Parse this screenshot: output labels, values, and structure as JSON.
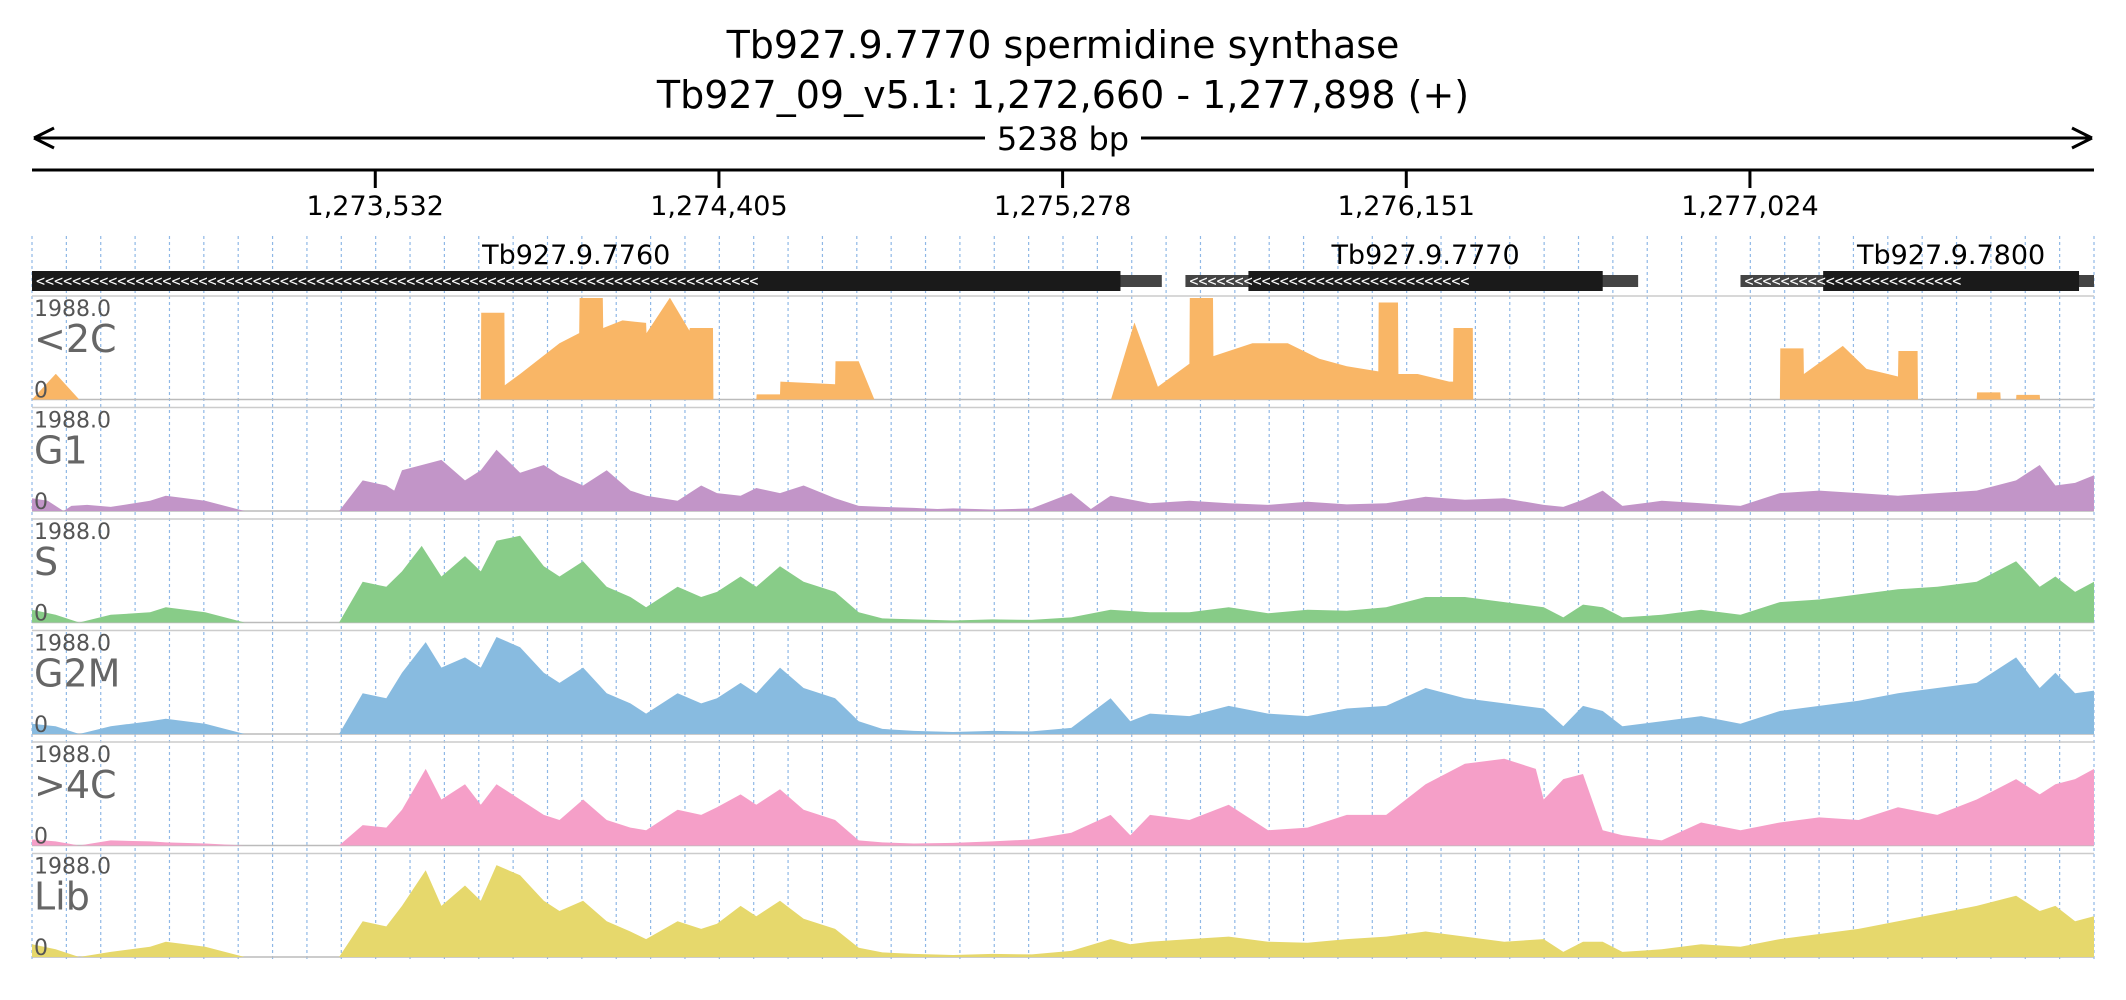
{
  "header": {
    "title_line1": "Tb927.9.7770  spermidine synthase",
    "title_line2": "Tb927_09_v5.1: 1,272,660 - 1,277,898 (+)",
    "span_label": "5238 bp"
  },
  "chart_data": {
    "type": "area",
    "x_range": [
      1272660,
      1277898
    ],
    "x_ticks": [
      1273532,
      1274405,
      1275278,
      1276151,
      1277024
    ],
    "x_tick_labels": [
      "1,273,532",
      "1,274,405",
      "1,275,278",
      "1,276,151",
      "1,277,024"
    ],
    "genes": [
      {
        "name": "Tb927.9.7760",
        "strand": "-",
        "utr_start": 1272660,
        "cds_start": 1272660,
        "cds_end": 1275425,
        "utr_end": 1275530
      },
      {
        "name": "Tb927.9.7770",
        "strand": "-",
        "utr_start": 1275590,
        "cds_start": 1275750,
        "cds_end": 1276650,
        "utr_end": 1276740
      },
      {
        "name": "Tb927.9.7800",
        "strand": "-",
        "utr_start": 1277000,
        "cds_start": 1277210,
        "cds_end": 1277860,
        "utr_end": 1277898
      }
    ],
    "tracks": [
      {
        "name": "<2C",
        "max_label": "1988.0",
        "min_label": "0",
        "ylim": [
          0,
          1988
        ],
        "color": "#f9b666",
        "x": [
          1272660,
          1272720,
          1272721,
          1272780,
          1272781,
          1273000,
          1273800,
          1273801,
          1273860,
          1273861,
          1273900,
          1274000,
          1274050,
          1274051,
          1274110,
          1274111,
          1274160,
          1274220,
          1274221,
          1274280,
          1274281,
          1274330,
          1274331,
          1274390,
          1274391,
          1274500,
          1274501,
          1274560,
          1274561,
          1274700,
          1274701,
          1274760,
          1274800,
          1274850,
          1274860,
          1274861,
          1274910,
          1274911,
          1275000,
          1275400,
          1275401,
          1275460,
          1275461,
          1275520,
          1275600,
          1275601,
          1275660,
          1275661,
          1275760,
          1275850,
          1275930,
          1276000,
          1276080,
          1276081,
          1276130,
          1276131,
          1276180,
          1276260,
          1276270,
          1276271,
          1276320,
          1276321,
          1276400,
          1276500,
          1276501,
          1276560,
          1276561,
          1276900,
          1277100,
          1277101,
          1277160,
          1277161,
          1277260,
          1277320,
          1277400,
          1277401,
          1277450,
          1277451,
          1277600,
          1277601,
          1277660,
          1277661,
          1277700,
          1277701,
          1277760,
          1277761,
          1277898
        ],
        "y": [
          0,
          500,
          500,
          0,
          0,
          0,
          0,
          1700,
          1700,
          280,
          500,
          1100,
          1300,
          2000,
          2000,
          1400,
          1550,
          1500,
          1300,
          2000,
          2000,
          1350,
          1400,
          1400,
          0,
          0,
          100,
          100,
          350,
          300,
          750,
          750,
          0,
          0,
          0,
          0,
          0,
          0,
          0,
          0,
          0,
          1500,
          1500,
          250,
          700,
          2000,
          2000,
          850,
          1100,
          1100,
          800,
          650,
          550,
          1900,
          1900,
          500,
          500,
          350,
          350,
          1400,
          1400,
          0,
          0,
          0,
          0,
          0,
          0,
          0,
          0,
          1000,
          1000,
          500,
          1050,
          600,
          450,
          950,
          950,
          0,
          0,
          140,
          140,
          0,
          0,
          90,
          90,
          0,
          0
        ]
      },
      {
        "name": "G1",
        "max_label": "1988.0",
        "min_label": "0",
        "ylim": [
          0,
          1988
        ],
        "color": "#c295c8",
        "x": [
          1272660,
          1272700,
          1272740,
          1272760,
          1272800,
          1272860,
          1272960,
          1273000,
          1273100,
          1273200,
          1273300,
          1273380,
          1273400,
          1273440,
          1273500,
          1273560,
          1273580,
          1273600,
          1273700,
          1273760,
          1273800,
          1273840,
          1273900,
          1273960,
          1274000,
          1274060,
          1274120,
          1274180,
          1274220,
          1274300,
          1274360,
          1274400,
          1274460,
          1274500,
          1274560,
          1274620,
          1274700,
          1274760,
          1274820,
          1274900,
          1274960,
          1275000,
          1275100,
          1275200,
          1275300,
          1275350,
          1275400,
          1275500,
          1275600,
          1275700,
          1275800,
          1275900,
          1276000,
          1276100,
          1276200,
          1276300,
          1276400,
          1276500,
          1276550,
          1276600,
          1276650,
          1276700,
          1276800,
          1276900,
          1277000,
          1277100,
          1277200,
          1277300,
          1277400,
          1277500,
          1277600,
          1277700,
          1277760,
          1277800,
          1277850,
          1277898
        ],
        "y": [
          250,
          200,
          0,
          100,
          120,
          80,
          200,
          300,
          200,
          0,
          0,
          0,
          0,
          0,
          600,
          500,
          400,
          800,
          1000,
          600,
          800,
          1200,
          750,
          900,
          700,
          500,
          800,
          400,
          300,
          200,
          500,
          350,
          300,
          450,
          350,
          500,
          250,
          100,
          80,
          60,
          40,
          50,
          30,
          50,
          350,
          40,
          300,
          150,
          200,
          150,
          120,
          180,
          130,
          150,
          280,
          220,
          250,
          120,
          80,
          220,
          400,
          100,
          200,
          150,
          100,
          350,
          400,
          350,
          300,
          350,
          400,
          600,
          900,
          500,
          550,
          700
        ]
      },
      {
        "name": "S",
        "max_label": "1988.0",
        "min_label": "0",
        "ylim": [
          0,
          1988
        ],
        "color": "#88cc88",
        "x": [
          1272660,
          1272720,
          1272780,
          1272860,
          1272960,
          1273000,
          1273100,
          1273200,
          1273300,
          1273380,
          1273440,
          1273500,
          1273560,
          1273600,
          1273650,
          1273700,
          1273760,
          1273800,
          1273840,
          1273900,
          1273960,
          1274000,
          1274060,
          1274120,
          1274180,
          1274220,
          1274300,
          1274360,
          1274400,
          1274460,
          1274500,
          1274560,
          1274620,
          1274700,
          1274760,
          1274820,
          1274900,
          1275000,
          1275100,
          1275200,
          1275300,
          1275400,
          1275500,
          1275600,
          1275700,
          1275800,
          1275900,
          1276000,
          1276100,
          1276200,
          1276300,
          1276400,
          1276500,
          1276550,
          1276600,
          1276650,
          1276700,
          1276800,
          1276900,
          1277000,
          1277100,
          1277200,
          1277300,
          1277400,
          1277500,
          1277600,
          1277700,
          1277760,
          1277800,
          1277850,
          1277898
        ],
        "y": [
          250,
          150,
          0,
          150,
          200,
          300,
          200,
          0,
          0,
          0,
          0,
          800,
          700,
          1000,
          1500,
          900,
          1300,
          1000,
          1600,
          1700,
          1100,
          900,
          1200,
          700,
          500,
          300,
          700,
          500,
          600,
          900,
          700,
          1100,
          800,
          600,
          200,
          80,
          60,
          40,
          60,
          50,
          100,
          250,
          200,
          200,
          300,
          180,
          250,
          230,
          300,
          500,
          500,
          400,
          300,
          100,
          350,
          300,
          100,
          150,
          250,
          150,
          400,
          450,
          550,
          650,
          700,
          800,
          1200,
          700,
          900,
          600,
          800
        ]
      },
      {
        "name": "G2M",
        "max_label": "1988.0",
        "min_label": "0",
        "ylim": [
          0,
          1988
        ],
        "color": "#88bbe0",
        "x": [
          1272660,
          1272720,
          1272780,
          1272860,
          1272960,
          1273000,
          1273100,
          1273200,
          1273300,
          1273380,
          1273440,
          1273500,
          1273560,
          1273600,
          1273660,
          1273700,
          1273760,
          1273800,
          1273840,
          1273900,
          1273960,
          1274000,
          1274060,
          1274120,
          1274180,
          1274220,
          1274300,
          1274360,
          1274400,
          1274460,
          1274500,
          1274560,
          1274620,
          1274700,
          1274760,
          1274820,
          1274900,
          1275000,
          1275100,
          1275200,
          1275300,
          1275400,
          1275450,
          1275500,
          1275600,
          1275700,
          1275800,
          1275900,
          1276000,
          1276100,
          1276200,
          1276300,
          1276400,
          1276500,
          1276550,
          1276600,
          1276650,
          1276700,
          1276800,
          1276900,
          1277000,
          1277100,
          1277200,
          1277300,
          1277400,
          1277500,
          1277600,
          1277700,
          1277760,
          1277800,
          1277850,
          1277898
        ],
        "y": [
          200,
          150,
          0,
          150,
          250,
          300,
          200,
          0,
          0,
          0,
          0,
          800,
          700,
          1200,
          1800,
          1300,
          1500,
          1300,
          1900,
          1700,
          1200,
          1000,
          1300,
          800,
          600,
          400,
          800,
          600,
          700,
          1000,
          800,
          1300,
          900,
          700,
          250,
          100,
          60,
          40,
          60,
          50,
          120,
          700,
          250,
          400,
          350,
          550,
          400,
          350,
          500,
          550,
          900,
          700,
          600,
          500,
          150,
          550,
          450,
          150,
          250,
          350,
          200,
          450,
          550,
          650,
          800,
          900,
          1000,
          1500,
          900,
          1200,
          800,
          850
        ]
      },
      {
        "name": ">4C",
        "max_label": "1988.0",
        "min_label": "0",
        "ylim": [
          0,
          1988
        ],
        "color": "#f59fc8",
        "x": [
          1272660,
          1272720,
          1272780,
          1272860,
          1272960,
          1273000,
          1273100,
          1273200,
          1273300,
          1273380,
          1273440,
          1273500,
          1273560,
          1273600,
          1273660,
          1273700,
          1273760,
          1273800,
          1273840,
          1273900,
          1273960,
          1274000,
          1274060,
          1274120,
          1274180,
          1274220,
          1274300,
          1274360,
          1274400,
          1274460,
          1274500,
          1274560,
          1274620,
          1274700,
          1274760,
          1274820,
          1274900,
          1275000,
          1275100,
          1275200,
          1275300,
          1275400,
          1275450,
          1275500,
          1275600,
          1275700,
          1275800,
          1275900,
          1276000,
          1276100,
          1276200,
          1276300,
          1276400,
          1276480,
          1276500,
          1276550,
          1276600,
          1276650,
          1276700,
          1276800,
          1276900,
          1277000,
          1277100,
          1277200,
          1277300,
          1277400,
          1277500,
          1277600,
          1277700,
          1277760,
          1277800,
          1277850,
          1277898
        ],
        "y": [
          120,
          80,
          0,
          100,
          80,
          60,
          40,
          0,
          0,
          0,
          0,
          400,
          350,
          700,
          1500,
          900,
          1200,
          800,
          1200,
          900,
          600,
          500,
          900,
          500,
          350,
          300,
          700,
          600,
          750,
          1000,
          800,
          1100,
          700,
          500,
          100,
          60,
          40,
          50,
          80,
          120,
          250,
          600,
          200,
          600,
          500,
          800,
          300,
          350,
          600,
          600,
          1200,
          1600,
          1700,
          1500,
          900,
          1300,
          1400,
          300,
          200,
          100,
          450,
          300,
          450,
          550,
          500,
          750,
          600,
          900,
          1300,
          1000,
          1200,
          1300,
          1500
        ]
      },
      {
        "name": "Lib",
        "max_label": "1988.0",
        "min_label": "0",
        "ylim": [
          0,
          1988
        ],
        "color": "#e6d86c",
        "x": [
          1272660,
          1272720,
          1272780,
          1272860,
          1272960,
          1273000,
          1273100,
          1273200,
          1273300,
          1273380,
          1273440,
          1273500,
          1273560,
          1273600,
          1273660,
          1273700,
          1273760,
          1273800,
          1273840,
          1273900,
          1273960,
          1274000,
          1274060,
          1274120,
          1274180,
          1274220,
          1274300,
          1274360,
          1274400,
          1274460,
          1274500,
          1274560,
          1274620,
          1274700,
          1274760,
          1274820,
          1274900,
          1275000,
          1275100,
          1275200,
          1275300,
          1275400,
          1275450,
          1275500,
          1275600,
          1275700,
          1275800,
          1275900,
          1276000,
          1276100,
          1276200,
          1276300,
          1276400,
          1276500,
          1276550,
          1276600,
          1276650,
          1276700,
          1276800,
          1276900,
          1277000,
          1277100,
          1277200,
          1277300,
          1277400,
          1277500,
          1277600,
          1277700,
          1277760,
          1277800,
          1277850,
          1277898
        ],
        "y": [
          250,
          150,
          0,
          100,
          200,
          300,
          200,
          0,
          0,
          0,
          0,
          700,
          600,
          1000,
          1700,
          1000,
          1400,
          1100,
          1800,
          1600,
          1100,
          900,
          1100,
          700,
          500,
          350,
          700,
          550,
          650,
          1000,
          800,
          1100,
          750,
          550,
          180,
          90,
          60,
          40,
          60,
          50,
          120,
          350,
          250,
          300,
          350,
          400,
          300,
          280,
          350,
          400,
          500,
          400,
          300,
          350,
          100,
          300,
          300,
          100,
          150,
          250,
          200,
          350,
          450,
          550,
          700,
          850,
          1000,
          1200,
          900,
          1000,
          700,
          800
        ]
      }
    ]
  }
}
